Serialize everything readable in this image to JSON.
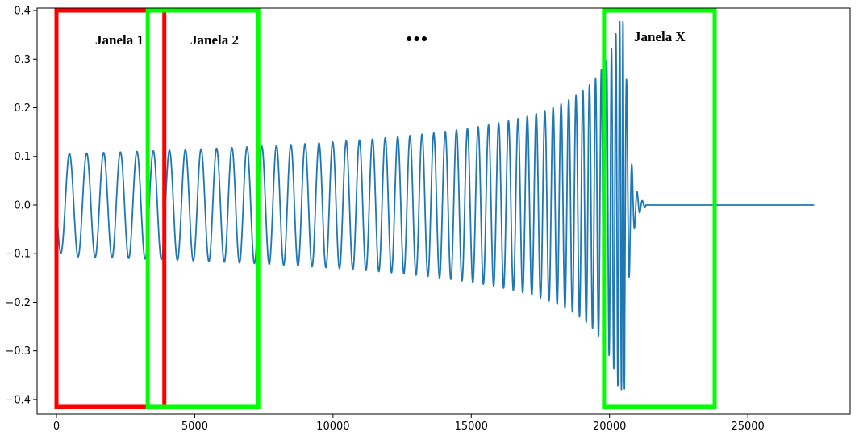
{
  "chart_data": {
    "type": "line",
    "title": "",
    "xlabel": "",
    "ylabel": "",
    "xlim": [
      -700,
      28700
    ],
    "ylim": [
      -0.43,
      0.405
    ],
    "x_ticks": [
      0,
      5000,
      10000,
      15000,
      20000,
      25000
    ],
    "y_ticks": [
      -0.4,
      -0.3,
      -0.2,
      -0.1,
      0.0,
      0.1,
      0.2,
      0.3,
      0.4
    ],
    "x_tick_labels": [
      "0",
      "5000",
      "10000",
      "15000",
      "20000",
      "25000"
    ],
    "y_tick_labels": [
      "−0.4",
      "−0.3",
      "−0.2",
      "−0.1",
      "0.0",
      "0.1",
      "0.2",
      "0.3",
      "0.4"
    ],
    "grid": false,
    "series": [
      {
        "color": "#1f77b4",
        "x_start": 0,
        "x_end": 27400,
        "base_amplitude": 0.105,
        "chirp_peak_x": 20550,
        "peak_amplitude": 0.38,
        "ringdown_end_x": 21300,
        "final_value": 0.0
      }
    ],
    "windows": [
      {
        "label": "Janela 1",
        "x_start": 0,
        "x_end": 3900,
        "y_min": -0.415,
        "y_max": 0.4,
        "color": "#ff0000"
      },
      {
        "label": "Janela 2",
        "x_start": 3300,
        "x_end": 7300,
        "y_min": -0.415,
        "y_max": 0.4,
        "color": "#00ff00"
      },
      {
        "label": "Janela X",
        "x_start": 19800,
        "x_end": 23800,
        "y_min": -0.415,
        "y_max": 0.4,
        "color": "#00ff00"
      }
    ],
    "ellipsis": "●●●"
  }
}
